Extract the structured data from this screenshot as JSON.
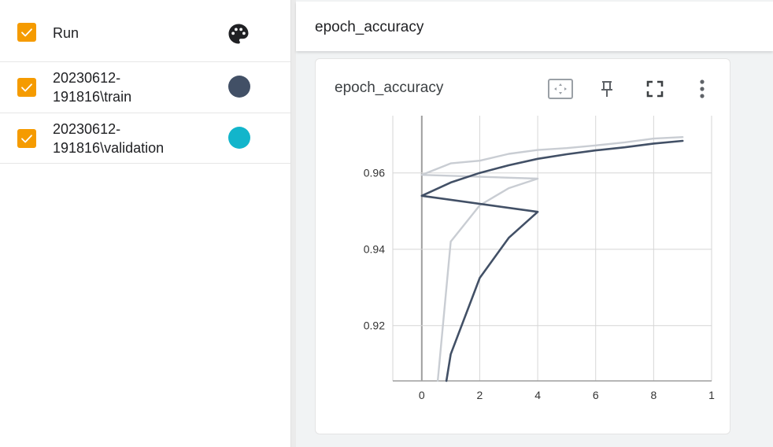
{
  "runs_panel": {
    "header": {
      "label": "Run",
      "checked": true,
      "icon": "palette-icon"
    },
    "runs": [
      {
        "name": "20230612-\n191816\\train",
        "checked": true,
        "color": "#425066"
      },
      {
        "name": "20230612-\n191816\\validation",
        "checked": true,
        "color": "#12b5cb"
      }
    ]
  },
  "main": {
    "header_title": "epoch_accuracy",
    "card": {
      "title": "epoch_accuracy",
      "tools": [
        "fit-domain-icon",
        "pin-icon",
        "fullscreen-icon",
        "more-vert-icon"
      ]
    }
  },
  "chart_data": {
    "type": "line",
    "title": "epoch_accuracy",
    "xlabel": "",
    "ylabel": "",
    "xlim": [
      -1,
      10
    ],
    "ylim": [
      0.9055,
      0.975
    ],
    "x_ticks": [
      "0",
      "2",
      "4",
      "6",
      "8",
      "1"
    ],
    "y_ticks": [
      "0.92",
      "0.94",
      "0.96"
    ],
    "grid": true,
    "series": [
      {
        "name": "20230612-191816\\train",
        "color": "#425066",
        "x": [
          0.85,
          1.0,
          2.0,
          3.0,
          4.0,
          0.0,
          1.0,
          2.0,
          3.0,
          4.0,
          5.0,
          6.0,
          7.0,
          8.0,
          9.0
        ],
        "y": [
          0.9055,
          0.9125,
          0.9325,
          0.943,
          0.9498,
          0.954,
          0.9575,
          0.96,
          0.962,
          0.9637,
          0.9649,
          0.9659,
          0.9667,
          0.9677,
          0.9684
        ]
      },
      {
        "name": "20230612-191816\\validation (smoothed)",
        "color": "#c9cdd3",
        "x": [
          0.55,
          1.0,
          2.0,
          3.0,
          4.0,
          0.0,
          1.0,
          2.0,
          3.0,
          4.0,
          5.0,
          6.0,
          7.0,
          8.0,
          9.0
        ],
        "y": [
          0.9055,
          0.942,
          0.9515,
          0.956,
          0.9585,
          0.9595,
          0.9625,
          0.9632,
          0.965,
          0.966,
          0.9665,
          0.9672,
          0.968,
          0.969,
          0.9694
        ]
      }
    ]
  }
}
